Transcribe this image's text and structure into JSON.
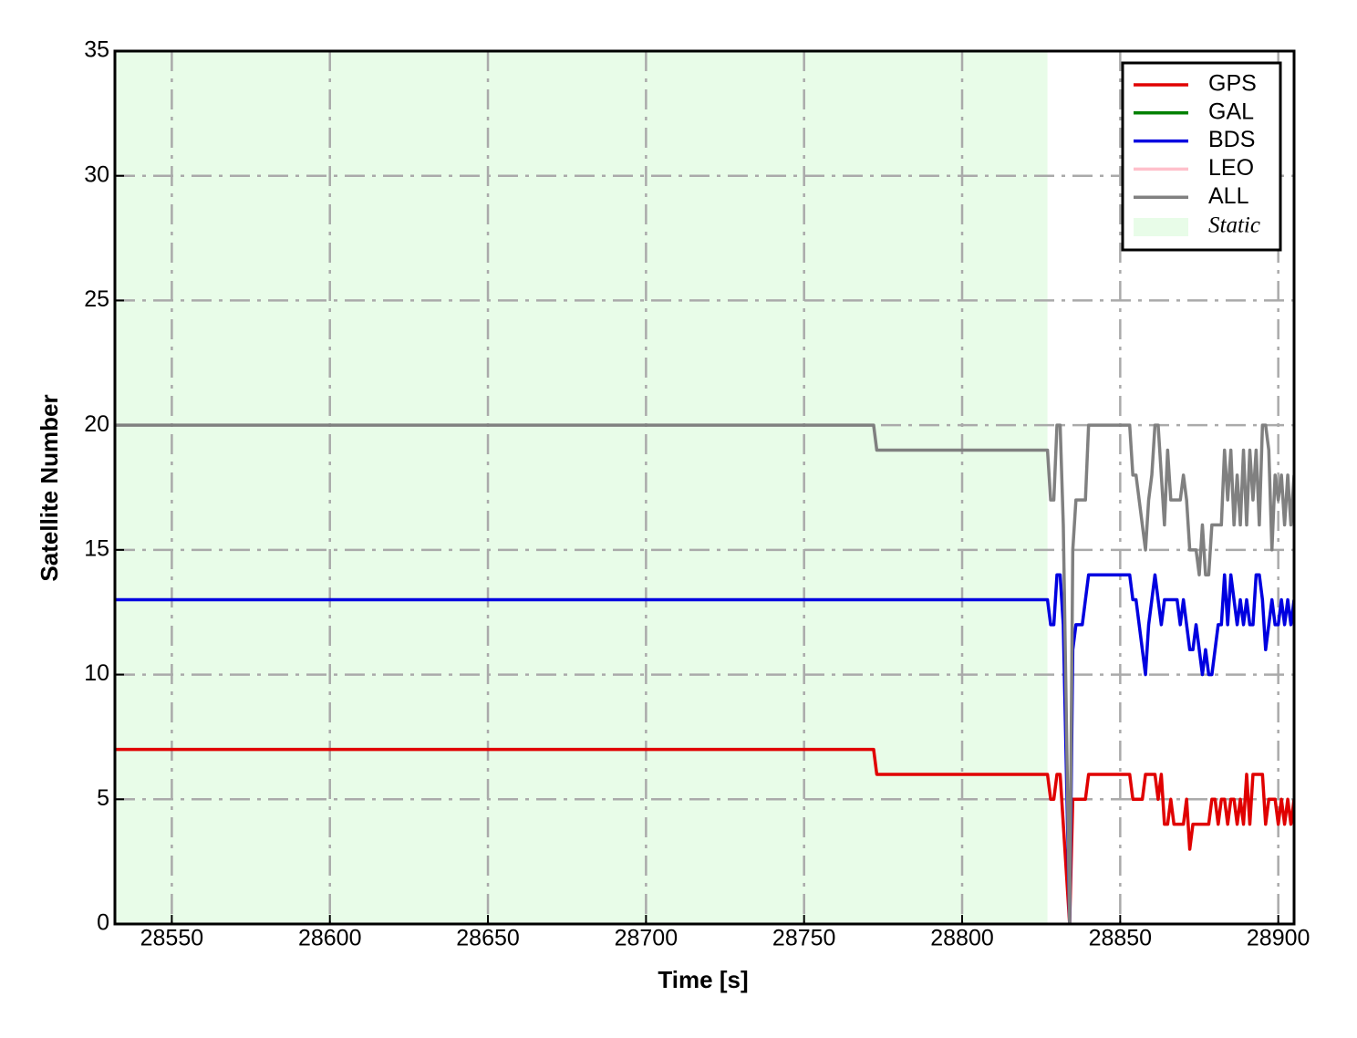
{
  "chart_data": {
    "type": "line",
    "xlabel": "Time [s]",
    "ylabel": "Satellite Number",
    "xlim": [
      28532,
      28905
    ],
    "ylim": [
      0,
      35
    ],
    "xticks": [
      28550,
      28600,
      28650,
      28700,
      28750,
      28800,
      28850,
      28900
    ],
    "yticks": [
      0,
      5,
      10,
      15,
      20,
      25,
      30,
      35
    ],
    "grid": true,
    "legend": "upper right",
    "shaded_region": {
      "label": "Static",
      "xlim": [
        28532,
        28827
      ],
      "color": "#e8fce8"
    },
    "x": [
      28532,
      28772,
      28773,
      28827,
      28828,
      28829,
      28830,
      28831,
      28832,
      28833,
      28834,
      28835,
      28836,
      28837,
      28838,
      28839,
      28840,
      28841,
      28842,
      28843,
      28844,
      28845,
      28846,
      28847,
      28848,
      28849,
      28850,
      28851,
      28852,
      28853,
      28854,
      28855,
      28856,
      28857,
      28858,
      28859,
      28860,
      28861,
      28862,
      28863,
      28864,
      28865,
      28866,
      28867,
      28868,
      28869,
      28870,
      28871,
      28872,
      28873,
      28874,
      28875,
      28876,
      28877,
      28878,
      28879,
      28880,
      28881,
      28882,
      28883,
      28884,
      28885,
      28886,
      28887,
      28888,
      28889,
      28890,
      28891,
      28892,
      28893,
      28894,
      28895,
      28896,
      28897,
      28898,
      28899,
      28900,
      28901,
      28902,
      28903,
      28904,
      28905
    ],
    "series": [
      {
        "name": "GPS",
        "color": "#e00000",
        "values": [
          7,
          7,
          6,
          6,
          5,
          5,
          6,
          6,
          4,
          2,
          0,
          5,
          5,
          5,
          5,
          5,
          6,
          6,
          6,
          6,
          6,
          6,
          6,
          6,
          6,
          6,
          6,
          6,
          6,
          6,
          5,
          5,
          5,
          5,
          6,
          6,
          6,
          6,
          5,
          6,
          4,
          4,
          5,
          4,
          4,
          4,
          4,
          5,
          3,
          4,
          4,
          4,
          4,
          4,
          4,
          5,
          5,
          4,
          5,
          5,
          4,
          5,
          5,
          4,
          5,
          4,
          6,
          4,
          6,
          6,
          6,
          6,
          4,
          5,
          5,
          5,
          4,
          5,
          4,
          5,
          4,
          5
        ]
      },
      {
        "name": "GAL",
        "color": "#008000",
        "values": [
          null,
          null,
          null,
          null,
          null,
          null,
          null,
          null,
          null,
          null,
          null,
          null,
          null,
          null,
          null,
          null,
          null,
          null,
          null,
          null,
          null,
          null,
          null,
          null,
          null,
          null,
          null,
          null,
          null,
          null,
          null,
          null,
          null,
          null,
          null,
          null,
          null,
          null,
          null,
          null,
          null,
          null,
          null,
          null,
          null,
          null,
          null,
          null,
          null,
          null,
          null,
          null,
          null,
          null,
          null,
          null,
          null,
          null,
          null,
          null,
          null,
          null,
          null,
          null,
          null,
          null,
          null,
          null,
          null,
          null,
          null,
          null,
          null,
          null,
          null,
          null,
          null,
          null,
          null,
          null,
          null,
          null
        ]
      },
      {
        "name": "BDS",
        "color": "#0000e0",
        "values": [
          13,
          13,
          13,
          13,
          12,
          12,
          14,
          14,
          12,
          6,
          0,
          11,
          12,
          12,
          12,
          13,
          14,
          14,
          14,
          14,
          14,
          14,
          14,
          14,
          14,
          14,
          14,
          14,
          14,
          14,
          13,
          13,
          12,
          11,
          10,
          12,
          13,
          14,
          13,
          12,
          13,
          13,
          13,
          13,
          13,
          12,
          13,
          12,
          11,
          11,
          12,
          11,
          10,
          11,
          10,
          10,
          11,
          12,
          12,
          14,
          12,
          14,
          13,
          12,
          13,
          12,
          13,
          12,
          12,
          14,
          14,
          13,
          11,
          12,
          13,
          12,
          12,
          13,
          12,
          13,
          12,
          13
        ]
      },
      {
        "name": "LEO",
        "color": "#ffc0cb",
        "values": [
          null,
          null,
          null,
          null,
          null,
          null,
          null,
          null,
          null,
          null,
          null,
          null,
          null,
          null,
          null,
          null,
          null,
          null,
          null,
          null,
          null,
          null,
          null,
          null,
          null,
          null,
          null,
          null,
          null,
          null,
          null,
          null,
          null,
          null,
          null,
          null,
          null,
          null,
          null,
          null,
          null,
          null,
          null,
          null,
          null,
          null,
          null,
          null,
          null,
          null,
          null,
          null,
          null,
          null,
          null,
          null,
          null,
          null,
          null,
          null,
          null,
          null,
          null,
          null,
          null,
          null,
          null,
          null,
          null,
          null,
          null,
          null,
          null,
          null,
          null,
          null,
          null,
          null,
          null,
          null,
          null,
          null
        ]
      },
      {
        "name": "ALL",
        "color": "#808080",
        "values": [
          20,
          20,
          19,
          19,
          17,
          17,
          20,
          20,
          16,
          8,
          0,
          15,
          17,
          17,
          17,
          17,
          20,
          20,
          20,
          20,
          20,
          20,
          20,
          20,
          20,
          20,
          20,
          20,
          20,
          20,
          18,
          18,
          17,
          16,
          15,
          17,
          18,
          20,
          20,
          18,
          16,
          19,
          17,
          17,
          17,
          17,
          18,
          17,
          15,
          15,
          15,
          14,
          16,
          14,
          14,
          16,
          16,
          16,
          16,
          19,
          17,
          19,
          16,
          18,
          16,
          19,
          16,
          19,
          17,
          19,
          16,
          20,
          20,
          19,
          15,
          18,
          17,
          18,
          16,
          18,
          16,
          18
        ]
      }
    ]
  }
}
